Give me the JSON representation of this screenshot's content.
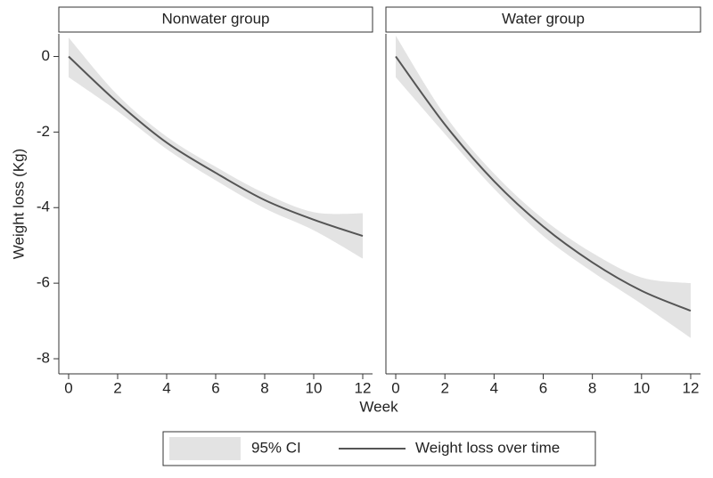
{
  "chart_data": {
    "type": "line",
    "ylabel": "Weight loss (Kg)",
    "xlabel": "Week",
    "x": [
      0,
      2,
      4,
      6,
      8,
      10,
      12
    ],
    "xlim": [
      -0.4,
      12.4
    ],
    "xticks": [
      0,
      2,
      4,
      6,
      8,
      10,
      12
    ],
    "ylim": [
      -8.4,
      0.6
    ],
    "yticks": [
      0,
      -2,
      -4,
      -6,
      -8
    ],
    "grid": false,
    "band": {
      "name": "95% CI",
      "color": "#e3e3e3"
    },
    "line": {
      "name": "Weight loss over time",
      "color": "#555555"
    },
    "panels": [
      {
        "title": "Nonwater group",
        "values": [
          0,
          -1.22,
          -2.28,
          -3.08,
          -3.8,
          -4.32,
          -4.75
        ],
        "upper": [
          0.5,
          -1.02,
          -2.12,
          -2.92,
          -3.62,
          -4.12,
          -4.15
        ],
        "lower": [
          -0.55,
          -1.45,
          -2.45,
          -3.28,
          -4.02,
          -4.6,
          -5.35
        ]
      },
      {
        "title": "Water group",
        "values": [
          0,
          -1.8,
          -3.3,
          -4.5,
          -5.45,
          -6.2,
          -6.73
        ],
        "upper": [
          0.55,
          -1.55,
          -3.1,
          -4.3,
          -5.2,
          -5.85,
          -6.0
        ],
        "lower": [
          -0.55,
          -2.05,
          -3.5,
          -4.75,
          -5.7,
          -6.55,
          -7.45
        ]
      }
    ]
  }
}
